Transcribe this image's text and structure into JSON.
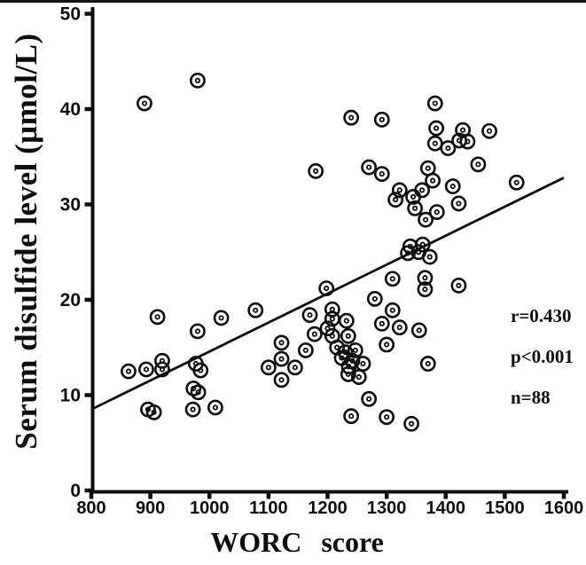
{
  "figure": {
    "background_color": "#ffffff",
    "ink_color": "#0d0d0d"
  },
  "chart_data": {
    "type": "scatter",
    "title": "",
    "xlabel": "WORC score",
    "ylabel": "Serum disulfide level (μmol/L)",
    "xlim": [
      800,
      1600
    ],
    "ylim": [
      0,
      50
    ],
    "x_ticks": [
      800,
      900,
      1000,
      1100,
      1200,
      1300,
      1400,
      1500,
      1600
    ],
    "y_ticks": [
      0,
      10,
      20,
      30,
      40,
      50
    ],
    "grid": false,
    "legend": "none",
    "marker": "open-circle-with-inner-dot",
    "annotations": {
      "r": "r=0.430",
      "p": "p<0.001",
      "n": "n=88"
    },
    "regression_line": {
      "x1": 800,
      "y1": 8.5,
      "x2": 1600,
      "y2": 32.8
    },
    "points": [
      [
        890,
        40.6
      ],
      [
        980,
        43.0
      ],
      [
        1240,
        39.1
      ],
      [
        1292,
        38.9
      ],
      [
        1180,
        33.5
      ],
      [
        1270,
        33.9
      ],
      [
        1292,
        33.2
      ],
      [
        1322,
        31.5
      ],
      [
        1382,
        40.6
      ],
      [
        1384,
        38.0
      ],
      [
        1382,
        36.4
      ],
      [
        1429,
        37.8
      ],
      [
        1423,
        36.7
      ],
      [
        1437,
        36.6
      ],
      [
        1404,
        35.9
      ],
      [
        1474,
        37.7
      ],
      [
        1455,
        34.2
      ],
      [
        1412,
        31.9
      ],
      [
        1520,
        32.3
      ],
      [
        1370,
        33.8
      ],
      [
        1378,
        32.5
      ],
      [
        1360,
        31.5
      ],
      [
        1345,
        30.8
      ],
      [
        1422,
        30.1
      ],
      [
        1348,
        29.6
      ],
      [
        1366,
        28.4
      ],
      [
        1385,
        29.2
      ],
      [
        1340,
        25.6
      ],
      [
        1336,
        24.9
      ],
      [
        1361,
        25.8
      ],
      [
        1354,
        25.0
      ],
      [
        1373,
        24.5
      ],
      [
        1365,
        22.3
      ],
      [
        1365,
        21.1
      ],
      [
        1422,
        21.5
      ],
      [
        1355,
        16.8
      ],
      [
        912,
        18.2
      ],
      [
        980,
        16.7
      ],
      [
        1020,
        18.1
      ],
      [
        1078,
        18.9
      ],
      [
        1198,
        21.2
      ],
      [
        1170,
        18.4
      ],
      [
        1208,
        19.0
      ],
      [
        1208,
        18.0
      ],
      [
        1232,
        17.8
      ],
      [
        1280,
        20.1
      ],
      [
        1310,
        22.2
      ],
      [
        1310,
        18.9
      ],
      [
        1292,
        17.5
      ],
      [
        1322,
        17.1
      ],
      [
        1315,
        30.5
      ],
      [
        863,
        12.5
      ],
      [
        893,
        12.7
      ],
      [
        920,
        13.6
      ],
      [
        920,
        12.7
      ],
      [
        977,
        13.3
      ],
      [
        985,
        12.6
      ],
      [
        973,
        10.7
      ],
      [
        981,
        10.3
      ],
      [
        972,
        8.5
      ],
      [
        1010,
        8.7
      ],
      [
        896,
        8.5
      ],
      [
        906,
        8.2
      ],
      [
        1122,
        15.5
      ],
      [
        1122,
        13.8
      ],
      [
        1100,
        12.9
      ],
      [
        1145,
        12.9
      ],
      [
        1122,
        11.6
      ],
      [
        1163,
        14.7
      ],
      [
        1178,
        16.4
      ],
      [
        1200,
        17.0
      ],
      [
        1208,
        16.2
      ],
      [
        1235,
        16.2
      ],
      [
        1230,
        14.5
      ],
      [
        1247,
        14.7
      ],
      [
        1242,
        13.6
      ],
      [
        1224,
        13.9
      ],
      [
        1216,
        15.0
      ],
      [
        1260,
        13.3
      ],
      [
        1235,
        12.2
      ],
      [
        1253,
        11.9
      ],
      [
        1236,
        13.0
      ],
      [
        1300,
        15.3
      ],
      [
        1270,
        9.6
      ],
      [
        1240,
        7.8
      ],
      [
        1300,
        7.7
      ],
      [
        1342,
        7.0
      ],
      [
        1370,
        13.3
      ]
    ]
  }
}
